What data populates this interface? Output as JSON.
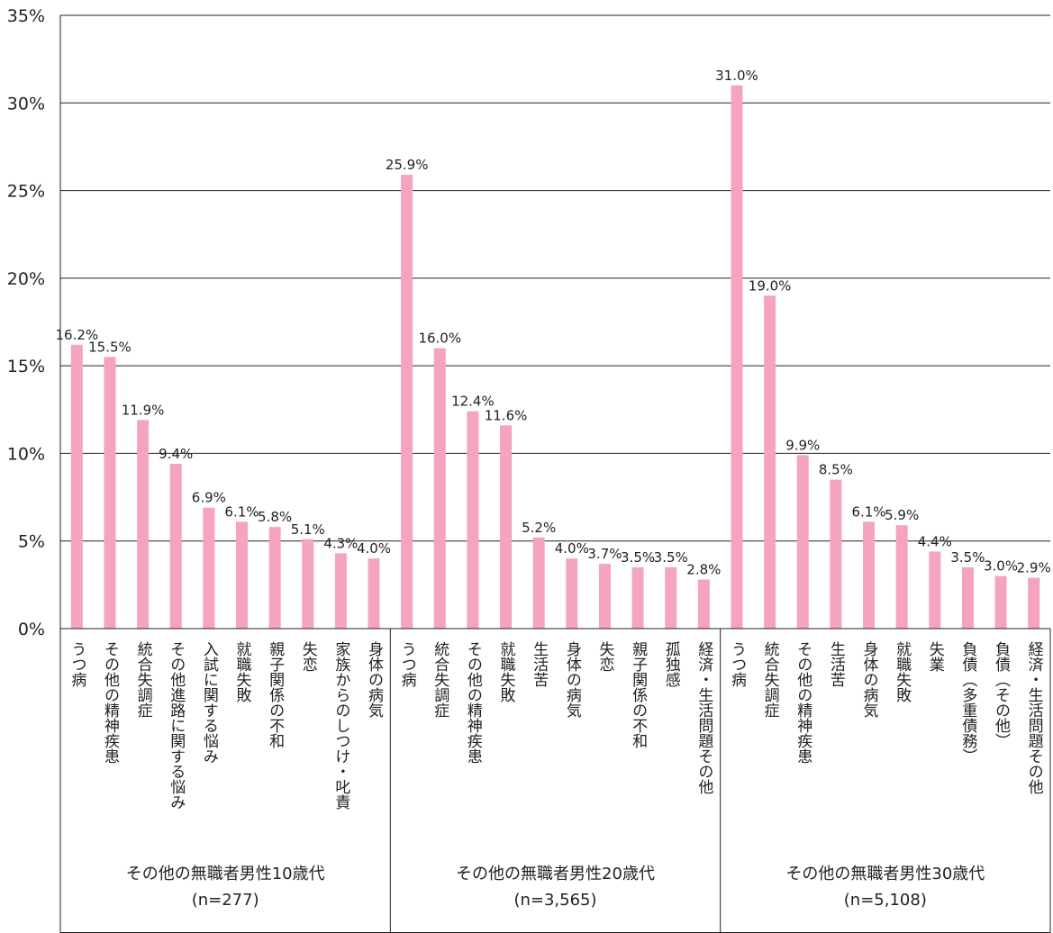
{
  "chart_data": {
    "type": "bar",
    "title": "",
    "xlabel": "",
    "ylabel": "",
    "ylim": [
      0,
      35
    ],
    "yticks": [
      0,
      5,
      10,
      15,
      20,
      25,
      30,
      35
    ],
    "ytick_labels": [
      "0%",
      "5%",
      "10%",
      "15%",
      "20%",
      "25%",
      "30%",
      "35%"
    ],
    "grid": true,
    "bar_color": "#f4a3c0",
    "groups": [
      {
        "label": "その他の無職者男性10歳代",
        "n_label": "(n=277)",
        "categories": [
          "うつ病",
          "その他の精神疾患",
          "統合失調症",
          "その他進路に関する悩み",
          "入試に関する悩み",
          "就職失敗",
          "親子関係の不和",
          "失恋",
          "家族からのしつけ・叱責",
          "身体の病気"
        ],
        "values": [
          16.2,
          15.5,
          11.9,
          9.4,
          6.9,
          6.1,
          5.8,
          5.1,
          4.3,
          4.0
        ],
        "labels": [
          "16.2%",
          "15.5%",
          "11.9%",
          "9.4%",
          "6.9%",
          "6.1%",
          "5.8%",
          "5.1%",
          "4.3%",
          "4.0%"
        ]
      },
      {
        "label": "その他の無職者男性20歳代",
        "n_label": "(n=3,565)",
        "categories": [
          "うつ病",
          "統合失調症",
          "その他の精神疾患",
          "就職失敗",
          "生活苦",
          "身体の病気",
          "失恋",
          "親子関係の不和",
          "孤独感",
          "経済・生活問題その他"
        ],
        "values": [
          25.9,
          16.0,
          12.4,
          11.6,
          5.2,
          4.0,
          3.7,
          3.5,
          3.5,
          2.8
        ],
        "labels": [
          "25.9%",
          "16.0%",
          "12.4%",
          "11.6%",
          "5.2%",
          "4.0%",
          "3.7%",
          "3.5%",
          "3.5%",
          "2.8%"
        ]
      },
      {
        "label": "その他の無職者男性30歳代",
        "n_label": "(n=5,108)",
        "categories": [
          "うつ病",
          "統合失調症",
          "その他の精神疾患",
          "生活苦",
          "身体の病気",
          "就職失敗",
          "失業",
          "負債（多重債務）",
          "負債（その他）",
          "経済・生活問題その他"
        ],
        "values": [
          31.0,
          19.0,
          9.9,
          8.5,
          6.1,
          5.9,
          4.4,
          3.5,
          3.0,
          2.9
        ],
        "labels": [
          "31.0%",
          "19.0%",
          "9.9%",
          "8.5%",
          "6.1%",
          "5.9%",
          "4.4%",
          "3.5%",
          "3.0%",
          "2.9%"
        ]
      }
    ]
  }
}
